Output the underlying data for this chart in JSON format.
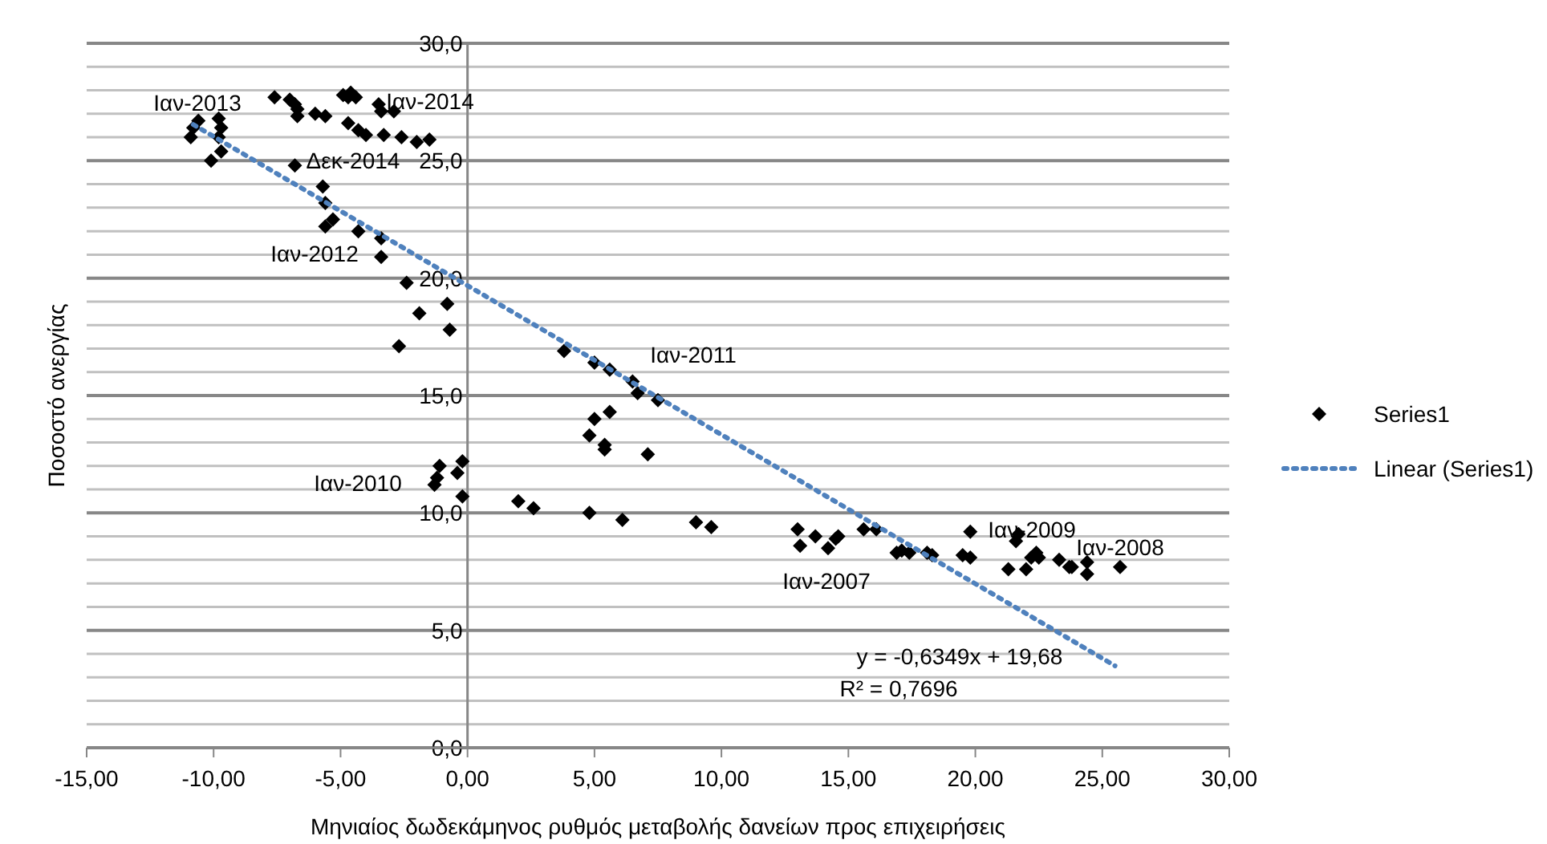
{
  "chart_data": {
    "type": "scatter",
    "xlabel": "Μηνιαίος δωδεκάμηνος ρυθμός μεταβολής δανείων προς επιχειρήσεις",
    "ylabel": "Ποσοστό ανεργίας",
    "xlim": [
      -15,
      30
    ],
    "xticks": [
      {
        "value": -15,
        "label": "-15,00"
      },
      {
        "value": -10,
        "label": "-10,00"
      },
      {
        "value": -5,
        "label": "-5,00"
      },
      {
        "value": 0,
        "label": "0,00"
      },
      {
        "value": 5,
        "label": "5,00"
      },
      {
        "value": 10,
        "label": "10,00"
      },
      {
        "value": 15,
        "label": "15,00"
      },
      {
        "value": 20,
        "label": "20,00"
      },
      {
        "value": 25,
        "label": "25,00"
      },
      {
        "value": 30,
        "label": "30,00"
      }
    ],
    "ylim": [
      0,
      30
    ],
    "yticks": [
      {
        "value": 0,
        "label": "0,0"
      },
      {
        "value": 1,
        "label": null
      },
      {
        "value": 2,
        "label": null
      },
      {
        "value": 3,
        "label": null
      },
      {
        "value": 4,
        "label": null
      },
      {
        "value": 5,
        "label": "5,0"
      },
      {
        "value": 6,
        "label": null
      },
      {
        "value": 7,
        "label": null
      },
      {
        "value": 8,
        "label": null
      },
      {
        "value": 9,
        "label": null
      },
      {
        "value": 10,
        "label": "10,0"
      },
      {
        "value": 11,
        "label": null
      },
      {
        "value": 12,
        "label": null
      },
      {
        "value": 13,
        "label": null
      },
      {
        "value": 14,
        "label": null
      },
      {
        "value": 15,
        "label": "15,0"
      },
      {
        "value": 16,
        "label": null
      },
      {
        "value": 17,
        "label": null
      },
      {
        "value": 18,
        "label": null
      },
      {
        "value": 19,
        "label": null
      },
      {
        "value": 20,
        "label": "20,0"
      },
      {
        "value": 21,
        "label": null
      },
      {
        "value": 22,
        "label": null
      },
      {
        "value": 23,
        "label": null
      },
      {
        "value": 24,
        "label": null
      },
      {
        "value": 25,
        "label": "25,0"
      },
      {
        "value": 26,
        "label": null
      },
      {
        "value": 27,
        "label": null
      },
      {
        "value": 28,
        "label": null
      },
      {
        "value": 29,
        "label": null
      },
      {
        "value": 30,
        "label": "30,0"
      }
    ],
    "grid": "y",
    "legend": "right",
    "series": [
      {
        "name": "Series1",
        "color": "#000000",
        "marker": "diamond",
        "x": [
          -10.8,
          -10.9,
          -10.6,
          -9.8,
          -9.7,
          -9.8,
          -9.7,
          -10.1,
          -7.6,
          -7.0,
          -6.8,
          -6.7,
          -6.7,
          -6.0,
          -5.6,
          -4.9,
          -4.7,
          -4.4,
          -4.6,
          -3.5,
          -3.4,
          -2.9,
          -4.7,
          -4.3,
          -4.0,
          -3.3,
          -2.6,
          -2.0,
          -1.5,
          -6.8,
          -5.7,
          -5.6,
          -5.3,
          -5.6,
          -4.3,
          -3.4,
          -3.4,
          -2.4,
          -0.8,
          -1.9,
          -0.7,
          -2.7,
          -0.2,
          -0.4,
          -1.1,
          -1.2,
          -1.3,
          -0.2,
          3.8,
          5.0,
          5.6,
          6.5,
          6.7,
          7.5,
          5.6,
          5.0,
          4.8,
          5.4,
          5.4,
          7.1,
          2.0,
          2.6,
          4.8,
          6.1,
          9.0,
          9.6,
          13.0,
          13.1,
          13.7,
          14.2,
          14.5,
          14.6,
          15.6,
          16.1,
          16.9,
          17.1,
          17.4,
          18.1,
          18.3,
          19.5,
          19.8,
          19.8,
          21.3,
          21.7,
          21.6,
          22.0,
          22.2,
          22.4,
          22.5,
          23.3,
          23.7,
          23.8,
          24.4,
          24.4,
          25.7
        ],
        "values": [
          26.4,
          26.0,
          26.7,
          26.8,
          26.4,
          26.0,
          25.4,
          25.0,
          27.7,
          27.6,
          27.4,
          27.2,
          26.9,
          27.0,
          26.9,
          27.8,
          27.7,
          27.7,
          27.9,
          27.4,
          27.1,
          27.1,
          26.6,
          26.3,
          26.1,
          26.1,
          26.0,
          25.8,
          25.9,
          24.8,
          23.9,
          23.2,
          22.5,
          22.2,
          22.0,
          21.7,
          20.9,
          19.8,
          18.9,
          18.5,
          17.8,
          17.1,
          12.2,
          11.7,
          12.0,
          11.5,
          11.2,
          10.7,
          16.9,
          16.4,
          16.1,
          15.6,
          15.1,
          14.8,
          14.3,
          14.0,
          13.3,
          12.9,
          12.7,
          12.5,
          10.5,
          10.2,
          10.0,
          9.7,
          9.6,
          9.4,
          9.3,
          8.6,
          9.0,
          8.5,
          8.9,
          9.0,
          9.3,
          9.3,
          8.3,
          8.4,
          8.3,
          8.3,
          8.2,
          8.2,
          8.1,
          9.2,
          7.6,
          9.1,
          8.8,
          7.6,
          8.1,
          8.3,
          8.1,
          8.0,
          7.7,
          7.7,
          7.9,
          7.4,
          7.7
        ]
      },
      {
        "name": "Linear (Series1)",
        "type": "line",
        "color": "#4f81bd",
        "line_style": "dotted",
        "marker": "none",
        "x": [
          -10.8,
          25.5
        ],
        "values": [
          26.54,
          3.49
        ]
      }
    ],
    "annotations": [
      "Ιαν-2013",
      "Ιαν-2014",
      "Δεκ-2014",
      "Ιαν-2012",
      "Ιαν-2011",
      "Ιαν-2010",
      "Ιαν-2007",
      "Ιαν-2009",
      "Ιαν-2008",
      "y = -0,6349x + 19,68",
      "R² = 0,7696"
    ]
  }
}
